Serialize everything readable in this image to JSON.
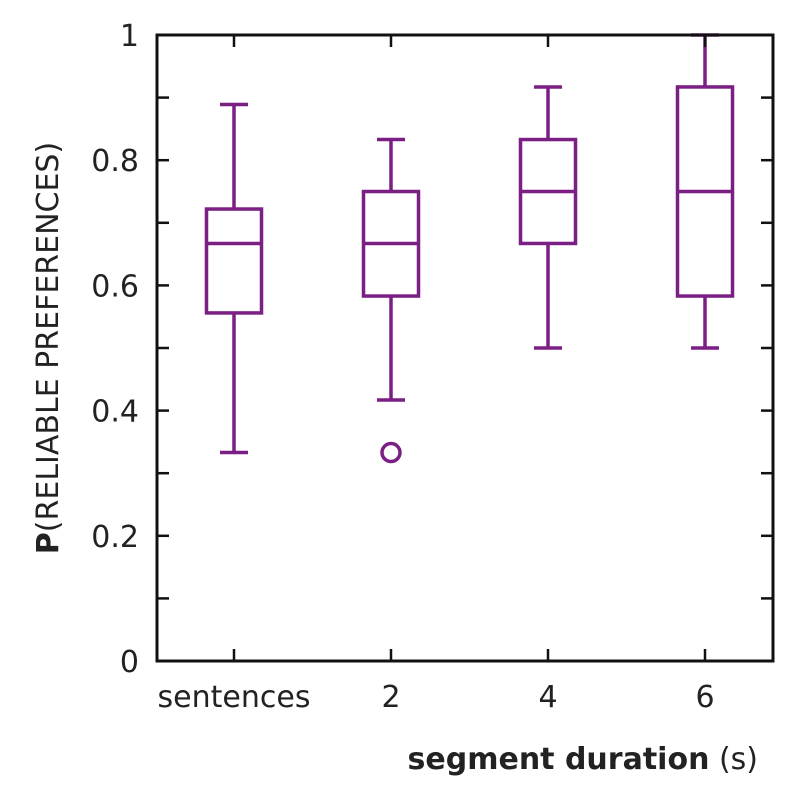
{
  "chart_data": {
    "type": "box",
    "categories": [
      "sentences",
      "2",
      "4",
      "6"
    ],
    "ylim": [
      0,
      1
    ],
    "yticks": [
      0,
      0.2,
      0.4,
      0.6,
      0.8,
      1
    ],
    "ytick_labels": [
      "0",
      "0.2",
      "0.4",
      "0.6",
      "0.8",
      "1"
    ],
    "ylabel_bold": "P",
    "ylabel_rest": "(RELIABLE PREFERENCES)",
    "xlabel_bold": "segment duration",
    "xlabel_rest": " (s)",
    "grid": false,
    "color": "#7b1f85",
    "boxes": [
      {
        "category": "sentences",
        "whisker_low": 0.333,
        "q1": 0.556,
        "median": 0.667,
        "q3": 0.722,
        "whisker_high": 0.889,
        "outliers": []
      },
      {
        "category": "2",
        "whisker_low": 0.417,
        "q1": 0.583,
        "median": 0.667,
        "q3": 0.75,
        "whisker_high": 0.833,
        "outliers": [
          0.333
        ]
      },
      {
        "category": "4",
        "whisker_low": 0.5,
        "q1": 0.667,
        "median": 0.75,
        "q3": 0.833,
        "whisker_high": 0.917,
        "outliers": []
      },
      {
        "category": "6",
        "whisker_low": 0.5,
        "q1": 0.583,
        "median": 0.75,
        "q3": 0.917,
        "whisker_high": 1.0,
        "outliers": []
      }
    ]
  }
}
